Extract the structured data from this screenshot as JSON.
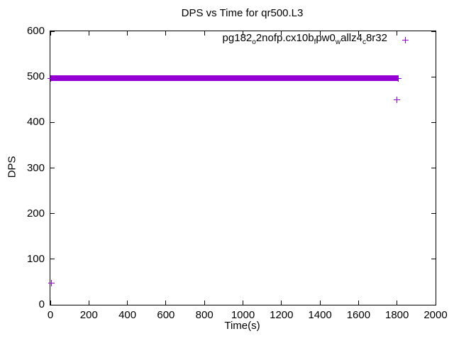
{
  "title": "DPS vs Time for qr500.L3",
  "axes": {
    "x": {
      "label": "Time(s)",
      "min": 0,
      "max": 2000,
      "ticks": [
        0,
        200,
        400,
        600,
        800,
        1000,
        1200,
        1400,
        1600,
        1800,
        2000
      ]
    },
    "y": {
      "label": "DPS",
      "min": 0,
      "max": 600,
      "ticks": [
        0,
        100,
        200,
        300,
        400,
        500,
        600
      ]
    }
  },
  "legend": {
    "position": "top-right-inside",
    "marker": "+",
    "series_label_plain": "pg182_o2nofp.cx10b_fpw0_wallz4_c8r32",
    "series_label_segments": [
      {
        "t": "pg182"
      },
      {
        "t": "o",
        "sub": true
      },
      {
        "t": "2nofp.cx10b"
      },
      {
        "t": "f",
        "sub": true
      },
      {
        "t": "pw0"
      },
      {
        "t": "w",
        "sub": true
      },
      {
        "t": "allz4"
      },
      {
        "t": "c",
        "sub": true
      },
      {
        "t": "8r32"
      }
    ]
  },
  "colors": {
    "series": "#9400d3",
    "axis": "#000000",
    "background": "#ffffff"
  },
  "chart_data": {
    "type": "scatter",
    "title": "DPS vs Time for qr500.L3",
    "xlabel": "Time(s)",
    "ylabel": "DPS",
    "xlim": [
      0,
      2000
    ],
    "ylim": [
      0,
      600
    ],
    "x_ticks": [
      0,
      200,
      400,
      600,
      800,
      1000,
      1200,
      1400,
      1600,
      1800,
      2000
    ],
    "y_ticks": [
      0,
      100,
      200,
      300,
      400,
      500,
      600
    ],
    "grid": false,
    "legend_position": "top-right inside plot",
    "series": [
      {
        "name": "pg182_o2nofp.cx10b_fpw0_wallz4_c8r32",
        "marker": "+",
        "color": "#9400d3",
        "dense_band": {
          "description": "dense horizontal cluster of + markers spanning the whole run",
          "x_from": 0,
          "x_to": 1805,
          "y_center": 497,
          "y_half_spread": 6
        },
        "band_end_points": [
          [
            0,
            497
          ],
          [
            1805,
            497
          ]
        ],
        "outlier_points": [
          [
            5,
            47
          ],
          [
            1800,
            449
          ]
        ]
      }
    ]
  }
}
